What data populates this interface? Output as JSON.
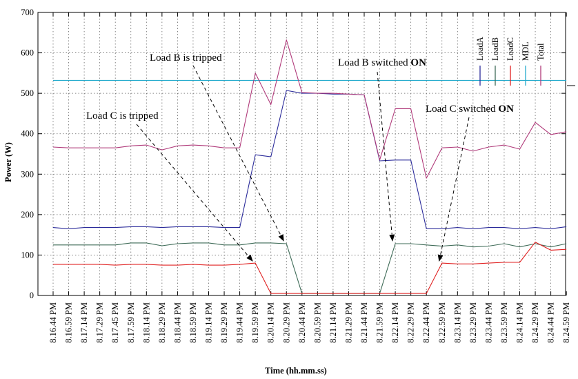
{
  "chart_data": {
    "type": "line",
    "xlabel": "Time (hh.mm.ss)",
    "ylabel": "Power (W)",
    "ylim": [
      0,
      700
    ],
    "yticks": [
      0,
      100,
      200,
      300,
      400,
      500,
      600,
      700
    ],
    "grid": true,
    "legend_position": "top-right",
    "categories": [
      "8.16.44 PM",
      "8.16.59 PM",
      "8.17.14 PM",
      "8.17.29 PM",
      "8.17.45 PM",
      "8.17.59 PM",
      "8.18.14 PM",
      "8.18.29 PM",
      "8.18.44 PM",
      "8.18.59 PM",
      "8.19.14 PM",
      "8.19.29 PM",
      "8.19.44 PM",
      "8.19.59 PM",
      "8.20.14 PM",
      "8.20.29 PM",
      "8.20.44 PM",
      "8.20.59 PM",
      "8.21.14 PM",
      "8.21.29 PM",
      "8.21.44 PM",
      "8.21.59 PM",
      "8.22.14 PM",
      "8.22.29 PM",
      "8.22.44 PM",
      "8.22.59 PM",
      "8.23.14 PM",
      "8.23.29 PM",
      "8.23.44 PM",
      "8.23.59 PM",
      "8.24.14 PM",
      "8.24.29 PM",
      "8.24.44 PM",
      "8.24.59 PM"
    ],
    "series": [
      {
        "name": "LoadA",
        "color": "#2b2b9a",
        "values": [
          168,
          165,
          168,
          168,
          168,
          170,
          170,
          168,
          170,
          170,
          170,
          168,
          168,
          348,
          343,
          507,
          500,
          500,
          498,
          498,
          496,
          333,
          335,
          335,
          165,
          165,
          168,
          165,
          168,
          168,
          165,
          168,
          165,
          170
        ]
      },
      {
        "name": "LoadB",
        "color": "#3e6b57",
        "values": [
          125,
          125,
          125,
          125,
          125,
          130,
          130,
          123,
          128,
          130,
          130,
          125,
          125,
          130,
          130,
          128,
          5,
          5,
          5,
          5,
          5,
          5,
          128,
          128,
          125,
          122,
          125,
          120,
          122,
          128,
          120,
          128,
          120,
          128
        ]
      },
      {
        "name": "LoadC",
        "color": "#e02020",
        "values": [
          77,
          77,
          77,
          77,
          75,
          77,
          77,
          75,
          75,
          77,
          75,
          75,
          77,
          80,
          5,
          5,
          5,
          5,
          5,
          5,
          5,
          5,
          5,
          5,
          5,
          80,
          78,
          78,
          80,
          82,
          82,
          132,
          112,
          114
        ]
      },
      {
        "name": "MDL",
        "color": "#22aacc",
        "values": [
          532,
          532,
          532,
          532,
          532,
          532,
          532,
          532,
          532,
          532,
          532,
          532,
          532,
          532,
          532,
          532,
          532,
          532,
          532,
          532,
          532,
          532,
          532,
          532,
          532,
          532,
          532,
          532,
          532,
          532,
          532,
          532,
          532,
          532
        ]
      },
      {
        "name": "Total",
        "color": "#b03a7a",
        "values": [
          367,
          365,
          365,
          365,
          365,
          370,
          372,
          360,
          370,
          372,
          370,
          365,
          365,
          550,
          472,
          632,
          502,
          500,
          500,
          498,
          496,
          335,
          462,
          462,
          290,
          365,
          367,
          357,
          367,
          372,
          362,
          428,
          398,
          405
        ]
      }
    ],
    "annotations": [
      {
        "id": "load-b-tripped",
        "text": "Load B is tripped",
        "bold_part": "",
        "target_index": 15,
        "target_value": 130
      },
      {
        "id": "load-b-on",
        "text": "Load B switched ",
        "bold_part": "ON",
        "target_index": 22,
        "target_value": 130
      },
      {
        "id": "load-c-tripped",
        "text": "Load C is tripped",
        "bold_part": "",
        "target_index": 13,
        "target_value": 80
      },
      {
        "id": "load-c-on",
        "text": "Load C switched ",
        "bold_part": "ON",
        "target_index": 25,
        "target_value": 80
      }
    ]
  }
}
